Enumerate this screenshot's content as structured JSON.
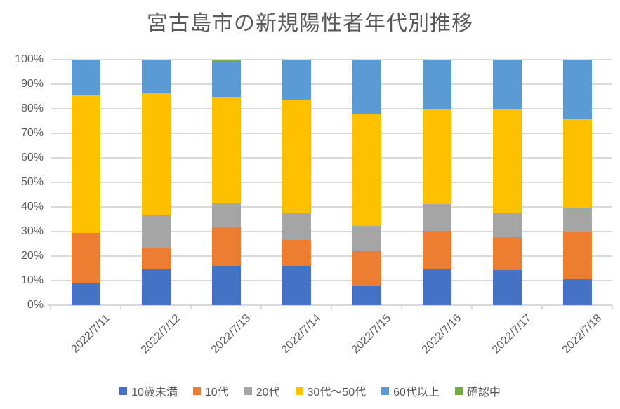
{
  "title": "宮古島市の新規陽性者年代別推移",
  "chart_data": {
    "type": "bar",
    "stacked": true,
    "percent_stacked": true,
    "title": "宮古島市の新規陽性者年代別推移",
    "categories": [
      "2022/7/11",
      "2022/7/12",
      "2022/7/13",
      "2022/7/14",
      "2022/7/15",
      "2022/7/16",
      "2022/7/17",
      "2022/7/18"
    ],
    "series": [
      {
        "name": "10歳未満",
        "color": "#4472C4",
        "values": [
          8.8,
          14.5,
          15.9,
          16.1,
          8.1,
          14.8,
          14.3,
          10.6
        ]
      },
      {
        "name": "10代",
        "color": "#ED7D31",
        "values": [
          20.6,
          8.6,
          15.9,
          10.6,
          13.8,
          15.5,
          13.4,
          19.3
        ]
      },
      {
        "name": "20代",
        "color": "#A5A5A5",
        "values": [
          0,
          13.9,
          9.7,
          10.9,
          10.3,
          10.8,
          10.1,
          9.6
        ]
      },
      {
        "name": "30代〜50代",
        "color": "#FFC000",
        "values": [
          56.1,
          49.2,
          43.5,
          46.2,
          45.4,
          38.8,
          42.2,
          36.1
        ]
      },
      {
        "name": "60代以上",
        "color": "#5B9BD5",
        "values": [
          14.5,
          13.8,
          13.8,
          16.2,
          22.4,
          20.1,
          20.0,
          24.4
        ]
      },
      {
        "name": "確認中",
        "color": "#70AD47",
        "values": [
          0,
          0,
          1.2,
          0,
          0,
          0,
          0,
          0
        ]
      }
    ],
    "xlabel": "",
    "ylabel": "",
    "ylim": [
      0,
      100
    ],
    "y_ticks": [
      "0%",
      "10%",
      "20%",
      "30%",
      "40%",
      "50%",
      "60%",
      "70%",
      "80%",
      "90%",
      "100%"
    ],
    "grid": true,
    "legend_position": "bottom",
    "colors": {
      "title_text": "#595959",
      "axis_text": "#595959",
      "gridline": "#d9d9d9",
      "background": "#ffffff"
    }
  }
}
